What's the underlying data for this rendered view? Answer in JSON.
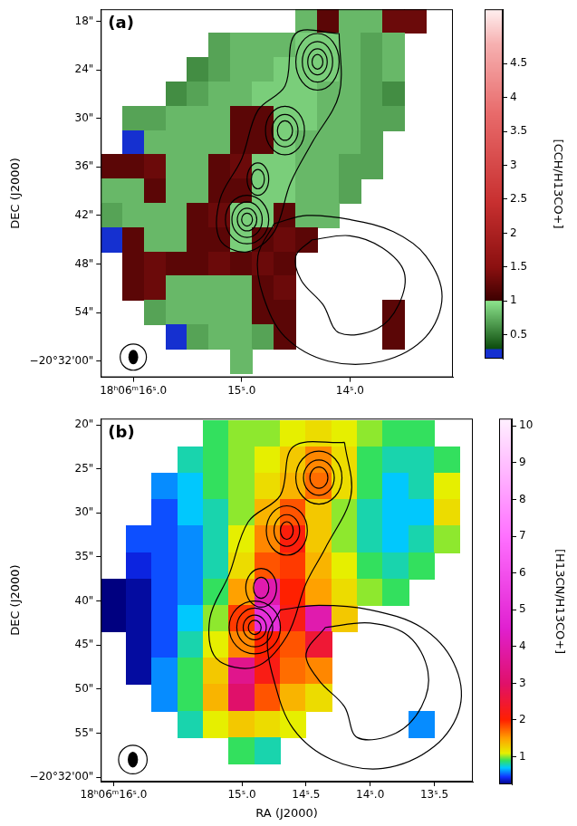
{
  "chart_data": [
    {
      "type": "heatmap",
      "label": "(a)",
      "y_label": "DEC (J2000)",
      "grid": false,
      "xlim": [
        16.3,
        13.05
      ],
      "xticks": [
        {
          "value": 16,
          "label": "18ʰ06ᵐ16ˢ.0"
        },
        {
          "value": 15,
          "label": "15ˢ.0"
        },
        {
          "value": 14,
          "label": "14ˢ.0"
        }
      ],
      "ylim": [
        62,
        16.5
      ],
      "yticks": [
        {
          "value": 18,
          "label": "18\""
        },
        {
          "value": 24,
          "label": "24\""
        },
        {
          "value": 30,
          "label": "30\""
        },
        {
          "value": 36,
          "label": "36\""
        },
        {
          "value": 42,
          "label": "42\""
        },
        {
          "value": 48,
          "label": "48\""
        },
        {
          "value": 54,
          "label": "54\""
        },
        {
          "value": 60,
          "label": "−20°32'00\""
        }
      ],
      "colorbar": {
        "title": "[CCH/H13CO+]",
        "lim": [
          0.15,
          5.3
        ],
        "ticks": [
          0.5,
          1,
          1.5,
          2,
          2.5,
          3,
          3.5,
          4,
          4.5
        ]
      },
      "cells": {
        "x": [
          16.2,
          16.0,
          15.8,
          15.6,
          15.4,
          15.2,
          15.0,
          14.8,
          14.6,
          14.4,
          14.2,
          14.0,
          13.8,
          13.6,
          13.4,
          13.2
        ],
        "y": [
          18,
          21,
          24,
          27,
          30,
          33,
          36,
          39,
          42,
          45,
          48,
          51,
          54,
          57,
          60
        ],
        "values": [
          [
            null,
            null,
            null,
            null,
            null,
            null,
            null,
            null,
            null,
            0.8,
            1.2,
            0.8,
            0.8,
            1.3,
            1.3,
            null
          ],
          [
            null,
            null,
            null,
            null,
            null,
            0.7,
            0.8,
            0.8,
            0.8,
            0.9,
            0.9,
            0.8,
            0.7,
            0.8,
            null,
            null
          ],
          [
            null,
            null,
            null,
            null,
            0.6,
            0.7,
            0.8,
            0.8,
            0.9,
            0.9,
            0.9,
            0.8,
            0.7,
            0.8,
            null,
            null
          ],
          [
            null,
            null,
            null,
            0.6,
            0.7,
            0.8,
            0.8,
            0.9,
            0.9,
            0.9,
            0.8,
            0.8,
            0.7,
            0.6,
            null,
            null
          ],
          [
            null,
            0.7,
            0.7,
            0.8,
            0.8,
            0.8,
            1.2,
            1.2,
            0.9,
            0.9,
            0.8,
            0.8,
            0.7,
            0.7,
            null,
            null
          ],
          [
            null,
            0.2,
            0.8,
            0.8,
            0.8,
            0.8,
            1.2,
            1.2,
            0.9,
            0.8,
            0.8,
            0.8,
            0.7,
            null,
            null,
            null
          ],
          [
            1.2,
            1.2,
            1.3,
            0.8,
            0.8,
            1.2,
            1.3,
            0.9,
            0.9,
            0.8,
            0.8,
            0.7,
            0.7,
            null,
            null,
            null
          ],
          [
            0.8,
            0.8,
            1.2,
            0.8,
            0.8,
            1.2,
            1.2,
            0.9,
            0.9,
            0.8,
            0.8,
            0.7,
            null,
            null,
            null,
            null
          ],
          [
            0.7,
            0.8,
            0.8,
            0.8,
            1.2,
            1.3,
            0.9,
            0.9,
            1.2,
            0.8,
            0.8,
            null,
            null,
            null,
            null,
            null
          ],
          [
            0.2,
            1.2,
            0.8,
            0.8,
            1.2,
            1.2,
            0.9,
            1.2,
            1.3,
            1.2,
            null,
            null,
            null,
            null,
            null,
            null
          ],
          [
            null,
            1.2,
            1.3,
            1.2,
            1.2,
            1.3,
            1.2,
            1.3,
            1.2,
            null,
            null,
            null,
            null,
            null,
            null,
            null
          ],
          [
            null,
            1.2,
            1.3,
            0.8,
            0.8,
            0.8,
            0.8,
            1.2,
            1.3,
            null,
            null,
            null,
            null,
            null,
            null,
            null
          ],
          [
            null,
            null,
            0.7,
            0.8,
            0.8,
            0.8,
            0.8,
            1.2,
            1.2,
            null,
            null,
            null,
            null,
            1.2,
            null,
            null
          ],
          [
            null,
            null,
            null,
            0.2,
            0.7,
            0.8,
            0.8,
            0.7,
            1.2,
            null,
            null,
            null,
            null,
            1.2,
            null,
            null
          ],
          [
            null,
            null,
            null,
            null,
            null,
            null,
            0.8,
            null,
            null,
            null,
            null,
            null,
            null,
            null,
            null,
            null
          ]
        ]
      },
      "contours": [
        [
          [
            14.1,
            19.5
          ],
          [
            14.5,
            19.5
          ],
          [
            14.6,
            26
          ],
          [
            14.85,
            29
          ],
          [
            15.0,
            35
          ],
          [
            15.2,
            40
          ],
          [
            15.2,
            45
          ],
          [
            14.95,
            46.5
          ],
          [
            14.7,
            44
          ],
          [
            14.55,
            38
          ],
          [
            14.35,
            33
          ],
          [
            14.1,
            27
          ],
          [
            14.1,
            19.5
          ]
        ],
        [
          [
            14.7,
            43
          ],
          [
            14.4,
            42
          ],
          [
            14.0,
            42.5
          ],
          [
            13.6,
            44
          ],
          [
            13.3,
            47
          ],
          [
            13.15,
            52
          ],
          [
            13.3,
            57
          ],
          [
            13.7,
            60
          ],
          [
            14.2,
            60
          ],
          [
            14.6,
            57
          ],
          [
            14.8,
            52
          ],
          [
            14.85,
            47
          ],
          [
            14.7,
            43
          ]
        ],
        [
          [
            14.35,
            45
          ],
          [
            14.0,
            44.5
          ],
          [
            13.7,
            46
          ],
          [
            13.5,
            49
          ],
          [
            13.55,
            53
          ],
          [
            13.75,
            56
          ],
          [
            14.1,
            56.5
          ],
          [
            14.25,
            53
          ],
          [
            14.45,
            50
          ],
          [
            14.5,
            47
          ],
          [
            14.35,
            45
          ]
        ]
      ],
      "cores": [
        {
          "x": 14.3,
          "y": 23,
          "radii": [
            [
              0.2,
              3.5
            ],
            [
              0.14,
              2.5
            ],
            [
              0.09,
              1.6
            ],
            [
              0.05,
              0.9
            ]
          ]
        },
        {
          "x": 14.6,
          "y": 31.5,
          "radii": [
            [
              0.18,
              3
            ],
            [
              0.12,
              2
            ],
            [
              0.07,
              1.2
            ]
          ]
        },
        {
          "x": 14.85,
          "y": 37.5,
          "radii": [
            [
              0.1,
              2
            ],
            [
              0.06,
              1.2
            ]
          ]
        },
        {
          "x": 14.95,
          "y": 42.5,
          "radii": [
            [
              0.2,
              3
            ],
            [
              0.14,
              2.2
            ],
            [
              0.09,
              1.4
            ],
            [
              0.05,
              0.8
            ]
          ]
        }
      ],
      "beam": {
        "x": 16.0,
        "y": 59.5,
        "radius": [
          0.045,
          0.9
        ]
      }
    },
    {
      "type": "heatmap",
      "label": "(b)",
      "x_label": "RA (J2000)",
      "y_label": "DEC (J2000)",
      "grid": false,
      "xlim": [
        16.1,
        13.2
      ],
      "xticks": [
        {
          "value": 16,
          "label": "18ʰ06ᵐ16ˢ.0"
        },
        {
          "value": 15,
          "label": "15ˢ.0"
        },
        {
          "value": 14.5,
          "label": "14ˢ.5"
        },
        {
          "value": 14,
          "label": "14ˢ.0"
        },
        {
          "value": 13.5,
          "label": "13ˢ.5"
        }
      ],
      "ylim": [
        60.5,
        19.3
      ],
      "yticks": [
        {
          "value": 20,
          "label": "20\""
        },
        {
          "value": 25,
          "label": "25\""
        },
        {
          "value": 30,
          "label": "30\""
        },
        {
          "value": 35,
          "label": "35\""
        },
        {
          "value": 40,
          "label": "40\""
        },
        {
          "value": 45,
          "label": "45\""
        },
        {
          "value": 50,
          "label": "50\""
        },
        {
          "value": 55,
          "label": "55\""
        },
        {
          "value": 60,
          "label": "−20°32'00\""
        }
      ],
      "colorbar": {
        "title": "[H13CN/H13CO+]",
        "lim": [
          0.25,
          10.2
        ],
        "ticks": [
          1,
          2,
          3,
          4,
          5,
          6,
          7,
          8,
          9,
          10
        ]
      },
      "cells": {
        "x": [
          16.0,
          15.8,
          15.6,
          15.4,
          15.2,
          15.0,
          14.8,
          14.6,
          14.4,
          14.2,
          14.0,
          13.8,
          13.6,
          13.4,
          13.2
        ],
        "y": [
          21,
          24,
          27,
          30,
          33,
          36,
          39,
          42,
          45,
          48,
          51,
          54,
          57,
          60
        ],
        "values": [
          [
            null,
            null,
            null,
            null,
            0.9,
            1.0,
            1.0,
            1.1,
            1.2,
            1.1,
            1.0,
            0.9,
            0.9,
            null,
            null
          ],
          [
            null,
            null,
            null,
            0.8,
            0.9,
            1.0,
            1.1,
            1.3,
            1.6,
            1.2,
            0.9,
            0.8,
            0.8,
            0.9,
            null
          ],
          [
            null,
            null,
            0.6,
            0.7,
            0.9,
            1.0,
            1.2,
            1.4,
            1.7,
            1.2,
            0.9,
            0.7,
            0.8,
            1.1,
            null
          ],
          [
            null,
            null,
            0.5,
            0.7,
            0.8,
            1.0,
            1.4,
            1.8,
            1.3,
            1.0,
            0.8,
            0.7,
            0.7,
            1.2,
            null
          ],
          [
            null,
            0.5,
            0.5,
            0.6,
            0.8,
            1.1,
            1.6,
            2.1,
            1.3,
            1.0,
            0.8,
            0.7,
            0.8,
            1.0,
            null
          ],
          [
            null,
            0.4,
            0.5,
            0.6,
            0.8,
            1.2,
            1.8,
            1.9,
            1.4,
            1.1,
            0.9,
            0.8,
            0.9,
            null,
            null
          ],
          [
            0.2,
            0.3,
            0.5,
            0.6,
            0.9,
            1.5,
            4.0,
            2.0,
            1.5,
            1.2,
            1.0,
            0.9,
            null,
            null,
            null
          ],
          [
            0.2,
            0.3,
            0.5,
            0.7,
            1.0,
            1.9,
            5.0,
            2.2,
            4.0,
            1.3,
            null,
            null,
            null,
            null,
            null
          ],
          [
            null,
            0.3,
            0.5,
            0.8,
            1.1,
            1.6,
            2.0,
            1.8,
            2.5,
            null,
            null,
            null,
            null,
            null,
            null
          ],
          [
            null,
            0.3,
            0.6,
            0.9,
            1.3,
            3.5,
            2.2,
            1.7,
            1.6,
            null,
            null,
            null,
            null,
            null,
            null
          ],
          [
            null,
            null,
            0.6,
            0.9,
            1.4,
            3.0,
            1.8,
            1.4,
            1.2,
            null,
            null,
            null,
            null,
            null,
            null
          ],
          [
            null,
            null,
            null,
            0.8,
            1.1,
            1.3,
            1.2,
            1.1,
            null,
            null,
            null,
            null,
            0.6,
            null,
            null
          ],
          [
            null,
            null,
            null,
            null,
            null,
            0.9,
            0.8,
            null,
            null,
            null,
            null,
            null,
            null,
            null,
            null
          ],
          [
            null,
            null,
            null,
            null,
            null,
            null,
            null,
            null,
            null,
            null,
            null,
            null,
            null,
            null,
            null
          ]
        ]
      },
      "contours": [
        [
          [
            14.2,
            22
          ],
          [
            14.6,
            22.5
          ],
          [
            14.7,
            28
          ],
          [
            14.95,
            31
          ],
          [
            15.1,
            37
          ],
          [
            15.25,
            42
          ],
          [
            15.2,
            46.5
          ],
          [
            14.9,
            47.5
          ],
          [
            14.65,
            44
          ],
          [
            14.5,
            38
          ],
          [
            14.35,
            34
          ],
          [
            14.15,
            28
          ],
          [
            14.2,
            22
          ]
        ],
        [
          [
            14.7,
            41
          ],
          [
            14.4,
            40.5
          ],
          [
            14.0,
            41
          ],
          [
            13.6,
            43
          ],
          [
            13.35,
            47
          ],
          [
            13.3,
            52
          ],
          [
            13.5,
            56.5
          ],
          [
            13.9,
            59
          ],
          [
            14.3,
            58
          ],
          [
            14.6,
            54.5
          ],
          [
            14.75,
            49
          ],
          [
            14.8,
            44
          ],
          [
            14.7,
            41
          ]
        ],
        [
          [
            14.35,
            43
          ],
          [
            14.0,
            42.5
          ],
          [
            13.7,
            44
          ],
          [
            13.55,
            48
          ],
          [
            13.6,
            52
          ],
          [
            13.8,
            55
          ],
          [
            14.1,
            55.5
          ],
          [
            14.2,
            52
          ],
          [
            14.4,
            49
          ],
          [
            14.5,
            46
          ],
          [
            14.35,
            43
          ]
        ]
      ],
      "cores": [
        {
          "x": 14.4,
          "y": 26,
          "radii": [
            [
              0.18,
              3
            ],
            [
              0.12,
              2
            ],
            [
              0.07,
              1.2
            ]
          ]
        },
        {
          "x": 14.65,
          "y": 32,
          "radii": [
            [
              0.16,
              2.8
            ],
            [
              0.1,
              1.8
            ],
            [
              0.05,
              1
            ]
          ]
        },
        {
          "x": 14.85,
          "y": 38.5,
          "radii": [
            [
              0.12,
              2.2
            ],
            [
              0.06,
              1.2
            ]
          ]
        },
        {
          "x": 14.9,
          "y": 43,
          "radii": [
            [
              0.2,
              3
            ],
            [
              0.14,
              2.2
            ],
            [
              0.09,
              1.4
            ],
            [
              0.05,
              0.8
            ]
          ]
        }
      ],
      "beam": {
        "x": 15.85,
        "y": 58,
        "radius": [
          0.04,
          0.9
        ]
      }
    }
  ]
}
